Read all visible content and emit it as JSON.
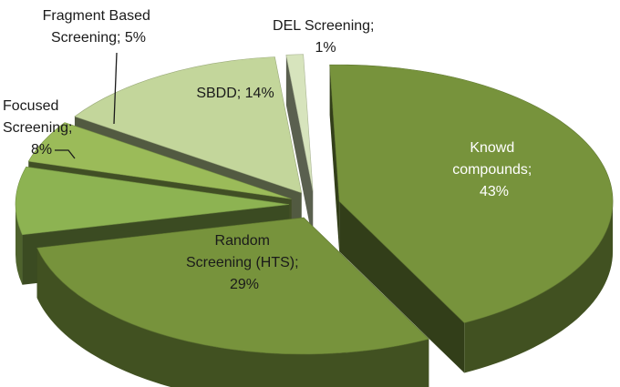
{
  "chart_data": {
    "type": "pie",
    "variant": "3d-exploded",
    "categories": [
      "Knowd compounds",
      "Random Screening (HTS)",
      "Focused Screening",
      "Fragment Based Screening",
      "SBDD",
      "DEL Screening"
    ],
    "values": [
      43,
      29,
      8,
      5,
      14,
      1
    ],
    "unit": "%",
    "labels": [
      [
        "Knowd",
        "compounds;",
        "43%"
      ],
      [
        "Random",
        "Screening (HTS);",
        "29%"
      ],
      [
        "Focused",
        "Screening;",
        "8%"
      ],
      [
        "Fragment Based",
        "Screening; 5%"
      ],
      [
        "SBDD; 14%"
      ],
      [
        "DEL Screening;",
        "1%"
      ]
    ],
    "colors": [
      "#77933c",
      "#77933c",
      "#8db352",
      "#9bbb59",
      "#c3d69b",
      "#d7e4bd"
    ],
    "label_colors": [
      "#ffffff",
      "#1a1a1a",
      "#1a1a1a",
      "#1a1a1a",
      "#1a1a1a",
      "#1a1a1a"
    ],
    "legend": "none"
  }
}
